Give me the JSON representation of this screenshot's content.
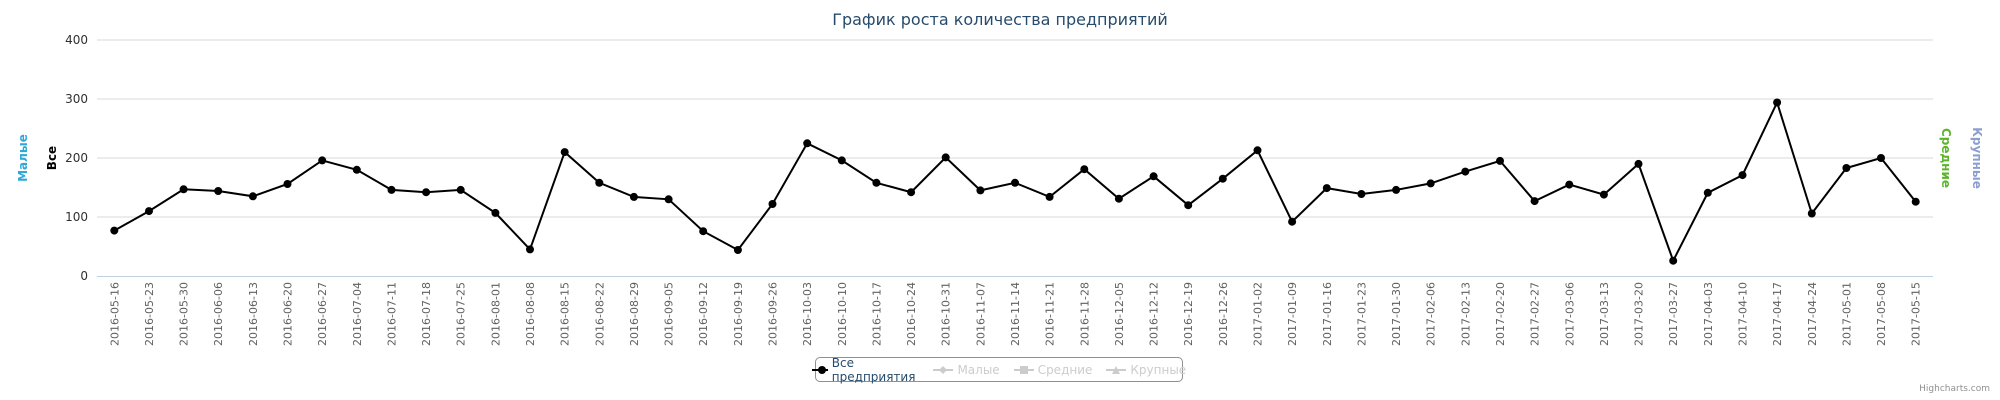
{
  "chart_data": {
    "type": "line",
    "title": "График роста количества предприятий",
    "y_axis_titles_left": [
      {
        "text": "Малые",
        "color": "#2fa8d8"
      },
      {
        "text": "Все",
        "color": "#000000"
      }
    ],
    "y_axis_titles_right": [
      {
        "text": "Средние",
        "color": "#5ab52a"
      },
      {
        "text": "Крупные",
        "color": "#8d9fd0"
      }
    ],
    "ylim": [
      0,
      400
    ],
    "yticks": [
      0,
      100,
      200,
      300,
      400
    ],
    "grid": true,
    "legend_position": "bottom-center",
    "categories": [
      "2016-05-16",
      "2016-05-23",
      "2016-05-30",
      "2016-06-06",
      "2016-06-13",
      "2016-06-20",
      "2016-06-27",
      "2016-07-04",
      "2016-07-11",
      "2016-07-18",
      "2016-07-25",
      "2016-08-01",
      "2016-08-08",
      "2016-08-15",
      "2016-08-22",
      "2016-08-29",
      "2016-09-05",
      "2016-09-12",
      "2016-09-19",
      "2016-09-26",
      "2016-10-03",
      "2016-10-10",
      "2016-10-17",
      "2016-10-24",
      "2016-10-31",
      "2016-11-07",
      "2016-11-14",
      "2016-11-21",
      "2016-11-28",
      "2016-12-05",
      "2016-12-12",
      "2016-12-19",
      "2016-12-26",
      "2017-01-02",
      "2017-01-09",
      "2017-01-16",
      "2017-01-23",
      "2017-01-30",
      "2017-02-06",
      "2017-02-13",
      "2017-02-20",
      "2017-02-27",
      "2017-03-06",
      "2017-03-13",
      "2017-03-20",
      "2017-03-27",
      "2017-04-03",
      "2017-04-10",
      "2017-04-17",
      "2017-04-24",
      "2017-05-01",
      "2017-05-08",
      "2017-05-15"
    ],
    "series": [
      {
        "name": "Все предприятия",
        "color": "#000000",
        "visible": true,
        "values": [
          77,
          110,
          147,
          144,
          135,
          156,
          196,
          180,
          146,
          142,
          146,
          107,
          45,
          210,
          158,
          134,
          130,
          76,
          44,
          122,
          225,
          196,
          158,
          142,
          201,
          145,
          158,
          134,
          181,
          131,
          169,
          120,
          165,
          213,
          92,
          149,
          139,
          146,
          157,
          177,
          195,
          127,
          155,
          138,
          190,
          26,
          141,
          171,
          294,
          106,
          183,
          200,
          126
        ]
      },
      {
        "name": "Малые",
        "color": "#cccccc",
        "visible": false,
        "marker": "diamond"
      },
      {
        "name": "Средние",
        "color": "#cccccc",
        "visible": false,
        "marker": "square"
      },
      {
        "name": "Крупные",
        "color": "#cccccc",
        "visible": false,
        "marker": "triangle"
      }
    ]
  },
  "credits": "Highcharts.com"
}
